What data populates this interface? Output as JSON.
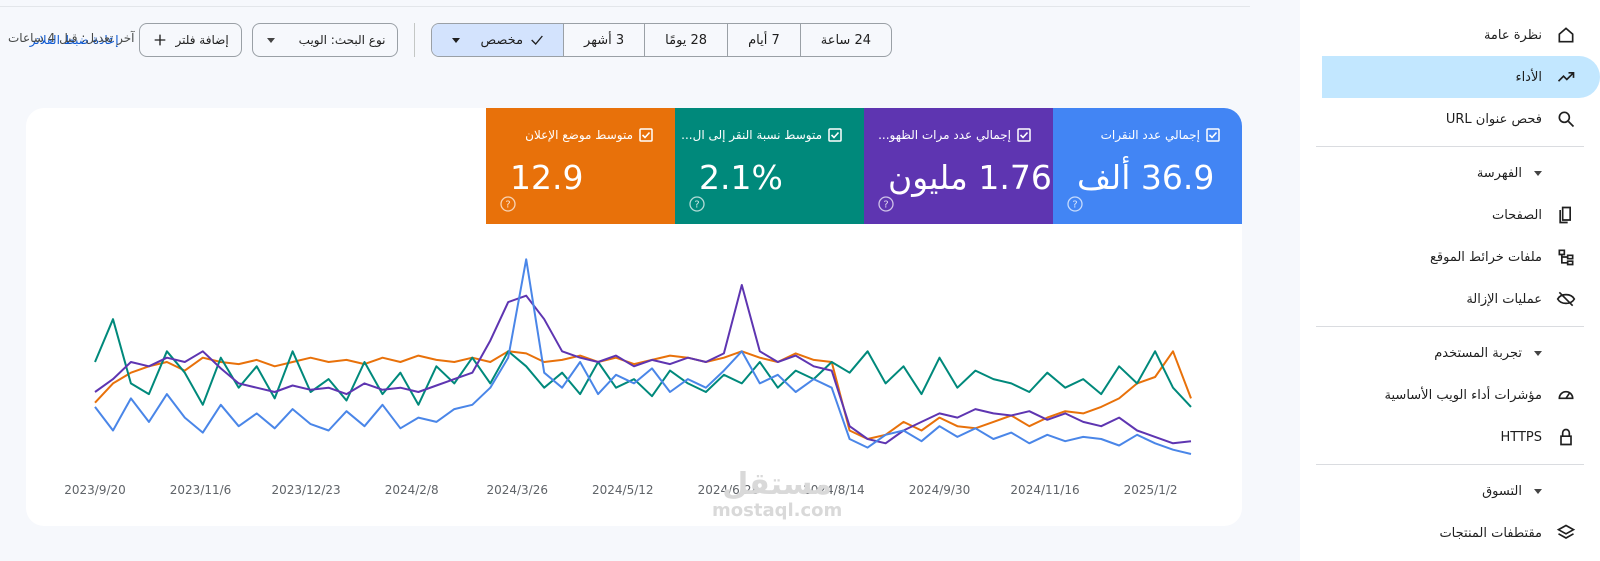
{
  "sidebar": {
    "active_item": 1,
    "top": [
      "نظرة عامة",
      "الأداء",
      "فحص عنوان URL"
    ],
    "sections": [
      {
        "title": "الفهرسة",
        "items": [
          "الصفحات",
          "ملفات خرائط الموقع",
          "عمليات الإزالة"
        ]
      },
      {
        "title": "تجربة المستخدم",
        "items": [
          "مؤشرات أداء الويب الأساسية",
          "HTTPS"
        ]
      },
      {
        "title": "التسوق",
        "items": [
          "مقتطفات المنتجات"
        ]
      }
    ]
  },
  "toolbar": {
    "date_ranges": [
      "24 ساعة",
      "7 أيام",
      "28 يومًا",
      "3 أشهر",
      "مخصص"
    ],
    "selected_range": 4,
    "search_type": "نوع البحث: الويب",
    "add_filter": "إضافة فلتر",
    "reset_filters": "إعادة ضبط الفلاتر",
    "last_updated": "آخر تعديل: قبل 4 ساعات"
  },
  "watermark": [
    "مستقل",
    "mostaql.com"
  ],
  "chart_data": {
    "type": "line",
    "x": [
      "2023/9/20",
      "2023/9/28",
      "2023/10/6",
      "2023/10/14",
      "2023/10/22",
      "2023/10/30",
      "2023/11/7",
      "2023/11/15",
      "2023/11/23",
      "2023/12/1",
      "2023/12/9",
      "2023/12/17",
      "2023/12/25",
      "2024/1/2",
      "2024/1/10",
      "2024/1/18",
      "2024/1/26",
      "2024/2/3",
      "2024/2/11",
      "2024/2/19",
      "2024/2/27",
      "2024/3/6",
      "2024/3/14",
      "2024/3/22",
      "2024/3/30",
      "2024/4/7",
      "2024/4/15",
      "2024/4/23",
      "2024/5/1",
      "2024/5/9",
      "2024/5/17",
      "2024/5/25",
      "2024/6/2",
      "2024/6/10",
      "2024/6/18",
      "2024/6/26",
      "2024/7/4",
      "2024/7/12",
      "2024/7/20",
      "2024/7/28",
      "2024/8/5",
      "2024/8/13",
      "2024/8/21",
      "2024/8/29",
      "2024/9/6",
      "2024/9/14",
      "2024/9/22",
      "2024/9/30",
      "2024/10/8",
      "2024/10/16",
      "2024/10/24",
      "2024/11/1",
      "2024/11/9",
      "2024/11/17",
      "2024/11/25",
      "2024/12/3",
      "2024/12/11",
      "2024/12/19",
      "2024/12/27",
      "2025/1/4",
      "2025/1/12",
      "2025/1/20"
    ],
    "xlim": [
      "2023/9/20",
      "2025/1/20"
    ],
    "xticks": [
      "2023/9/20",
      "2023/11/6",
      "2023/12/23",
      "2024/2/8",
      "2024/3/26",
      "2024/5/12",
      "2024/6/28",
      "2024/8/14",
      "2024/9/30",
      "2024/11/16",
      "2025/1/2"
    ],
    "ylim": [
      0,
      100
    ],
    "series": [
      {
        "name": "إجمالي عدد النقرات",
        "value": 36900,
        "value_label": "36.9 ألف",
        "color": "#4285f4",
        "line_color": "#4a86e8",
        "values": [
          29,
          18,
          33,
          22,
          35,
          24,
          17,
          30,
          20,
          26,
          19,
          28,
          21,
          18,
          27,
          20,
          30,
          19,
          24,
          22,
          28,
          30,
          38,
          52,
          98,
          45,
          38,
          50,
          35,
          44,
          40,
          47,
          36,
          42,
          38,
          46,
          55,
          40,
          44,
          36,
          42,
          38,
          14,
          10,
          16,
          18,
          13,
          20,
          15,
          19,
          14,
          17,
          12,
          16,
          13,
          15,
          14,
          11,
          16,
          12,
          9,
          7
        ]
      },
      {
        "name": "إجمالي عدد مرات الظهو...",
        "value": 1760000,
        "value_label": "1.76 مليون",
        "color": "#5e35b1",
        "line_color": "#5e35b1",
        "values": [
          36,
          42,
          50,
          48,
          52,
          50,
          55,
          47,
          40,
          38,
          36,
          39,
          37,
          38,
          35,
          40,
          37,
          38,
          36,
          39,
          42,
          45,
          60,
          78,
          81,
          70,
          55,
          52,
          50,
          53,
          48,
          51,
          49,
          52,
          50,
          54,
          86,
          55,
          50,
          53,
          48,
          46,
          20,
          14,
          12,
          18,
          22,
          26,
          24,
          28,
          26,
          25,
          27,
          23,
          26,
          22,
          20,
          24,
          18,
          15,
          12,
          13
        ]
      },
      {
        "name": "متوسط نسبة النقر إلى ال...",
        "value": 2.1,
        "value_label": "2.1%",
        "color": "#00897b",
        "line_color": "#00897b",
        "values": [
          50,
          70,
          40,
          35,
          55,
          45,
          30,
          52,
          38,
          48,
          33,
          55,
          36,
          42,
          32,
          50,
          35,
          45,
          30,
          48,
          40,
          52,
          40,
          55,
          48,
          38,
          45,
          35,
          50,
          38,
          42,
          34,
          46,
          40,
          36,
          44,
          40,
          50,
          38,
          46,
          42,
          50,
          45,
          55,
          40,
          48,
          35,
          52,
          38,
          46,
          42,
          40,
          36,
          45,
          38,
          42,
          35,
          48,
          40,
          55,
          38,
          29
        ]
      },
      {
        "name": "متوسط موضع الإعلان",
        "value": 12.9,
        "color": "#e8710a",
        "line_color": "#e8710a",
        "values": [
          31,
          40,
          45,
          48,
          50,
          46,
          52,
          50,
          49,
          51,
          48,
          50,
          52,
          50,
          51,
          49,
          52,
          50,
          53,
          51,
          50,
          52,
          50,
          55,
          54,
          50,
          51,
          53,
          50,
          52,
          49,
          51,
          53,
          52,
          50,
          52,
          55,
          52,
          50,
          54,
          51,
          50,
          18,
          14,
          16,
          22,
          18,
          24,
          20,
          19,
          22,
          25,
          20,
          24,
          27,
          26,
          29,
          33,
          40,
          43,
          55,
          33
        ]
      }
    ]
  }
}
